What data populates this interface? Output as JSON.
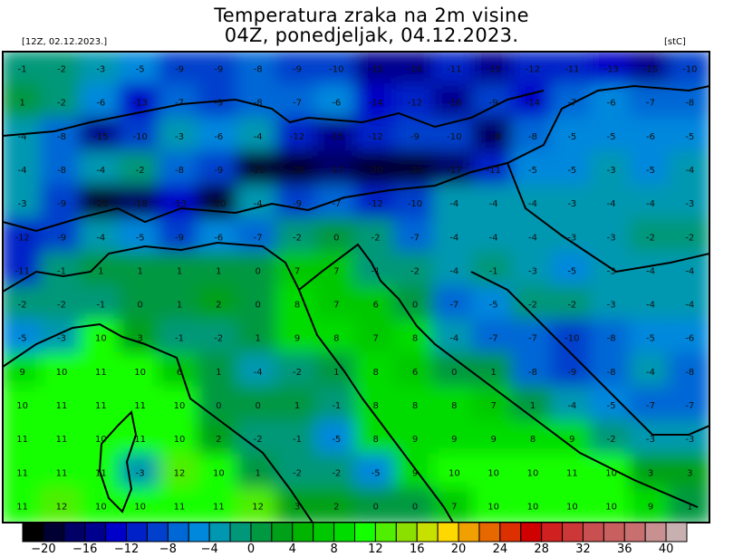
{
  "header": {
    "title_line1": "Temperatura zraka na 2m visine",
    "title_line2": "04Z, ponedjeljak, 04.12.2023.",
    "run_label": "[12Z, 02.12.2023.]",
    "unit_label": "[stC]"
  },
  "map": {
    "field": "2m air temperature",
    "grid_values": [
      [
        -1,
        -2,
        -3,
        -5,
        -9,
        -9,
        -8,
        -9,
        -10,
        -15,
        -16,
        -11,
        -15,
        -12,
        -11,
        -13,
        -15,
        -10
      ],
      [
        1,
        -2,
        -6,
        -13,
        -7,
        -9,
        -8,
        -7,
        -6,
        -14,
        -12,
        -16,
        -9,
        -14,
        -7,
        -6,
        -7,
        -8
      ],
      [
        -4,
        -8,
        -15,
        -10,
        -3,
        -6,
        -4,
        -12,
        -15,
        -12,
        -9,
        -10,
        -18,
        -8,
        -5,
        -5,
        -6,
        -5
      ],
      [
        -4,
        -8,
        -4,
        -2,
        -8,
        -9,
        -20,
        -20,
        -17,
        -20,
        -20,
        -17,
        -11,
        -5,
        -5,
        -3,
        -5,
        -4
      ],
      [
        -3,
        -9,
        -20,
        -18,
        -13,
        -20,
        -4,
        -9,
        -7,
        -12,
        -10,
        -4,
        -4,
        -4,
        -3,
        -4,
        -4,
        -3
      ],
      [
        -12,
        -9,
        -4,
        -5,
        -9,
        -6,
        -7,
        -2,
        0,
        -2,
        -7,
        -4,
        -4,
        -4,
        -3,
        -3,
        -2,
        -2
      ],
      [
        -11,
        -1,
        1,
        1,
        1,
        1,
        0,
        7,
        7,
        -1,
        -2,
        -4,
        -1,
        -3,
        -5,
        -3,
        -4,
        -4
      ],
      [
        -2,
        -2,
        -1,
        0,
        1,
        2,
        0,
        8,
        7,
        6,
        0,
        -7,
        -5,
        -2,
        -2,
        -3,
        -4,
        -4
      ],
      [
        -5,
        -3,
        10,
        3,
        -1,
        -2,
        1,
        9,
        8,
        7,
        8,
        -4,
        -7,
        -7,
        -10,
        -8,
        -5,
        -6
      ],
      [
        9,
        10,
        11,
        10,
        6,
        1,
        -4,
        -2,
        1,
        8,
        6,
        0,
        1,
        -8,
        -9,
        -8,
        -4,
        -8
      ],
      [
        10,
        11,
        11,
        11,
        10,
        0,
        0,
        1,
        -1,
        8,
        8,
        8,
        7,
        1,
        -4,
        -5,
        -7,
        -7
      ],
      [
        11,
        11,
        10,
        11,
        10,
        2,
        -2,
        -1,
        -5,
        8,
        9,
        9,
        9,
        8,
        9,
        -2,
        -3,
        -3
      ],
      [
        11,
        11,
        11,
        -3,
        12,
        10,
        1,
        -2,
        -2,
        -5,
        9,
        10,
        10,
        10,
        11,
        10,
        3,
        3
      ],
      [
        11,
        12,
        10,
        10,
        11,
        11,
        12,
        3,
        2,
        0,
        0,
        7,
        10,
        10,
        10,
        10,
        9,
        1
      ]
    ]
  },
  "colorbar": {
    "step": 2,
    "min": -20,
    "max": 40,
    "colors": [
      "#000000",
      "#000033",
      "#000066",
      "#00008f",
      "#0000c8",
      "#0020c8",
      "#0040cc",
      "#0068d6",
      "#0088dd",
      "#0098b0",
      "#009878",
      "#009840",
      "#00a018",
      "#00b400",
      "#00c800",
      "#00dc00",
      "#14ff00",
      "#50ee00",
      "#8ce000",
      "#c8e000",
      "#ffd800",
      "#f0a000",
      "#e86800",
      "#dc3000",
      "#d00000",
      "#d02020",
      "#cc3838",
      "#c85050",
      "#c86060",
      "#c87070",
      "#c89090",
      "#c8b0b0"
    ],
    "tick_labels": [
      "-20",
      "-16",
      "-12",
      "-8",
      "-4",
      "0",
      "4",
      "8",
      "12",
      "16",
      "20",
      "24",
      "28",
      "32",
      "36",
      "40"
    ]
  }
}
